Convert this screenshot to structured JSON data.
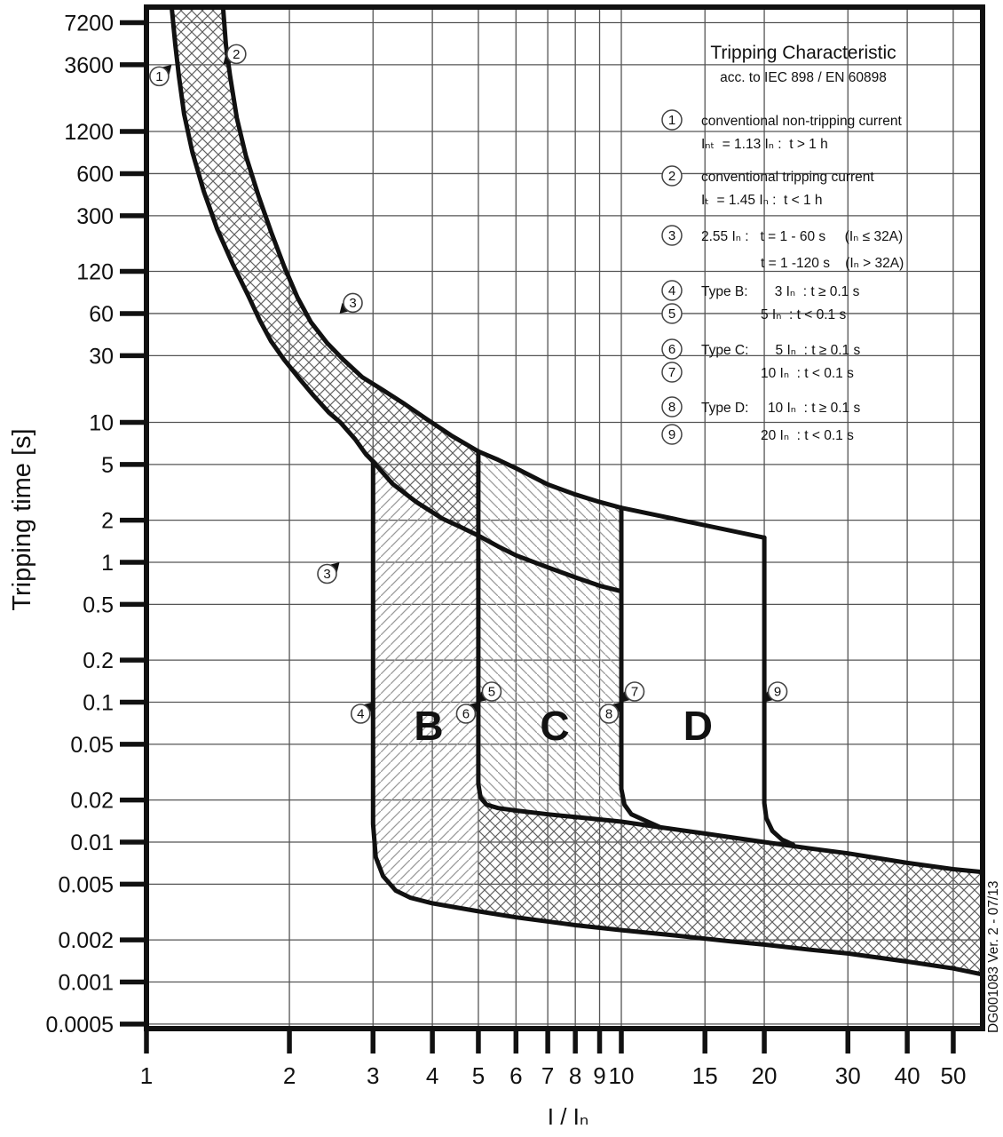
{
  "page": {
    "background": "#ffffff"
  },
  "header": {
    "title": "Tripping Characteristic",
    "subtitle": "acc. to IEC 898 / EN 60898"
  },
  "legend": {
    "items": [
      {
        "num": "1",
        "lines": [
          "conventional non-tripping current",
          "Iₙₜ  = 1.13 Iₙ :  t > 1 h"
        ]
      },
      {
        "num": "2",
        "lines": [
          "conventional tripping current",
          "Iₜ  = 1.45 Iₙ :  t < 1 h"
        ]
      },
      {
        "num": "3",
        "lines": [
          "2.55 Iₙ :   t = 1 - 60 s     (Iₙ ≤ 32A)",
          "t = 1 -120 s    (Iₙ > 32A)"
        ]
      },
      {
        "num": "4",
        "lines": [
          "Type B:       3 Iₙ  : t ≥ 0.1 s"
        ]
      },
      {
        "num": "5",
        "lines": [
          "5 Iₙ  : t < 0.1 s"
        ]
      },
      {
        "num": "6",
        "lines": [
          "Type C:       5 Iₙ  : t ≥ 0.1 s"
        ]
      },
      {
        "num": "7",
        "lines": [
          "10 Iₙ  : t < 0.1 s"
        ]
      },
      {
        "num": "8",
        "lines": [
          "Type D:     10 Iₙ  : t ≥ 0.1 s"
        ]
      },
      {
        "num": "9",
        "lines": [
          "20 Iₙ  : t < 0.1 s"
        ]
      }
    ]
  },
  "footnote": "DG001083 Ver. 2 - 07/13",
  "colors": {
    "ink": "#111111",
    "grid": "#555555",
    "hatch_single": "#9a9a9a",
    "hatch_cross": "#606060",
    "marker_stroke": "#444444",
    "background": "#ffffff"
  },
  "chart_data": {
    "type": "line",
    "log_log": true,
    "title": "Tripping Characteristic",
    "subtitle": "acc. to IEC 898 / EN 60898",
    "xlabel": "I / Iₙ",
    "ylabel": "Tripping time [s]",
    "x_ticks": [
      "1",
      "2",
      "3",
      "4",
      "5",
      "6",
      "7",
      "8",
      "9",
      "10",
      "15",
      "20",
      "30",
      "40",
      "50"
    ],
    "y_ticks": [
      "7200",
      "3600",
      "1200",
      "600",
      "300",
      "120",
      "60",
      "30",
      "10",
      "5",
      "2",
      "1",
      "0.5",
      "0.2",
      "0.1",
      "0.05",
      "0.02",
      "0.01",
      "0.005",
      "0.002",
      "0.001",
      "0.0005"
    ],
    "x_range": [
      1,
      57.7
    ],
    "y_range": [
      0.00046,
      9300
    ],
    "grid": true,
    "legend_position": "top-right",
    "series": [
      {
        "name": "thermal-upper-limit-1.45In",
        "points": [
          [
            1.45,
            9300
          ],
          [
            1.47,
            5000
          ],
          [
            1.5,
            3000
          ],
          [
            1.55,
            1500
          ],
          [
            1.62,
            800
          ],
          [
            1.72,
            420
          ],
          [
            1.83,
            230
          ],
          [
            1.95,
            130
          ],
          [
            2.08,
            78
          ],
          [
            2.22,
            52
          ],
          [
            2.4,
            37
          ],
          [
            2.6,
            28
          ],
          [
            2.85,
            21
          ],
          [
            3.15,
            17
          ],
          [
            3.5,
            13.5
          ],
          [
            3.9,
            10.5
          ],
          [
            4.4,
            8.0
          ],
          [
            5.0,
            6.2
          ],
          [
            5.5,
            5.4
          ],
          [
            6,
            4.7
          ],
          [
            7,
            3.6
          ],
          [
            8,
            3.05
          ],
          [
            9,
            2.7
          ],
          [
            10,
            2.45
          ]
        ]
      },
      {
        "name": "thermal-lower-limit-1.13In",
        "points": [
          [
            1.13,
            9300
          ],
          [
            1.15,
            5000
          ],
          [
            1.17,
            3000
          ],
          [
            1.2,
            1600
          ],
          [
            1.25,
            850
          ],
          [
            1.32,
            450
          ],
          [
            1.41,
            240
          ],
          [
            1.52,
            135
          ],
          [
            1.64,
            80
          ],
          [
            1.73,
            54
          ],
          [
            1.83,
            38
          ],
          [
            1.95,
            28
          ],
          [
            2.1,
            20.5
          ],
          [
            2.25,
            15.5
          ],
          [
            2.42,
            11.8
          ],
          [
            2.56,
            10.0
          ],
          [
            2.75,
            7.6
          ],
          [
            2.9,
            5.9
          ],
          [
            3.0,
            5.25
          ],
          [
            3.3,
            3.63
          ],
          [
            3.7,
            2.7
          ],
          [
            4.2,
            2.05
          ],
          [
            4.6,
            1.78
          ],
          [
            5.0,
            1.55
          ],
          [
            5.5,
            1.3
          ],
          [
            6,
            1.12
          ],
          [
            7,
            0.92
          ],
          [
            8,
            0.78
          ],
          [
            9,
            0.68
          ],
          [
            10,
            0.62
          ]
        ]
      },
      {
        "name": "type-d-upper-boundary",
        "points": [
          [
            10,
            2.45
          ],
          [
            20,
            1.5
          ]
        ]
      },
      {
        "name": "magnetic-b-min-3In",
        "points": [
          [
            3,
            5.25
          ],
          [
            3,
            0.0135
          ],
          [
            3.04,
            0.0078
          ],
          [
            3.15,
            0.0057
          ],
          [
            3.35,
            0.0045
          ],
          [
            3.6,
            0.004
          ],
          [
            4,
            0.00365
          ],
          [
            5,
            0.0032
          ],
          [
            6,
            0.0029
          ],
          [
            8,
            0.00255
          ],
          [
            10,
            0.00235
          ],
          [
            13,
            0.00215
          ],
          [
            17,
            0.00195
          ],
          [
            20,
            0.00185
          ],
          [
            25,
            0.0017
          ],
          [
            30,
            0.0016
          ],
          [
            40,
            0.0014
          ],
          [
            50,
            0.00125
          ],
          [
            57.7,
            0.00113
          ]
        ]
      },
      {
        "name": "magnetic-b-max-c-min-5In",
        "points": [
          [
            5,
            6.2
          ],
          [
            5,
            0.026
          ],
          [
            5.05,
            0.021
          ],
          [
            5.2,
            0.0185
          ],
          [
            5.5,
            0.0175
          ],
          [
            6,
            0.0168
          ],
          [
            7,
            0.0158
          ],
          [
            8,
            0.0151
          ],
          [
            10,
            0.014
          ],
          [
            12,
            0.0128
          ],
          [
            15,
            0.0115
          ],
          [
            20,
            0.01
          ],
          [
            25,
            0.009
          ],
          [
            30,
            0.0083
          ],
          [
            40,
            0.0071
          ],
          [
            50,
            0.0064
          ],
          [
            57.7,
            0.0061
          ]
        ]
      },
      {
        "name": "magnetic-c-max-d-min-10In",
        "points": [
          [
            10,
            2.45
          ],
          [
            10,
            0.024
          ],
          [
            10.15,
            0.0185
          ],
          [
            10.5,
            0.0158
          ],
          [
            11.2,
            0.0143
          ],
          [
            12,
            0.0129
          ]
        ]
      },
      {
        "name": "magnetic-d-max-20In",
        "points": [
          [
            20,
            1.5
          ],
          [
            20,
            0.019
          ],
          [
            20.2,
            0.0148
          ],
          [
            20.8,
            0.012
          ],
          [
            21.8,
            0.0104
          ],
          [
            23,
            0.0096
          ]
        ]
      }
    ],
    "regions": [
      {
        "name": "thermal-band",
        "hatch": "cross",
        "points": [
          [
            1.45,
            9300
          ],
          [
            1.47,
            5000
          ],
          [
            1.5,
            3000
          ],
          [
            1.55,
            1500
          ],
          [
            1.62,
            800
          ],
          [
            1.72,
            420
          ],
          [
            1.83,
            230
          ],
          [
            1.95,
            130
          ],
          [
            2.08,
            78
          ],
          [
            2.22,
            52
          ],
          [
            2.4,
            37
          ],
          [
            2.6,
            28
          ],
          [
            2.85,
            21
          ],
          [
            3.15,
            17
          ],
          [
            3.5,
            13.5
          ],
          [
            3.9,
            10.5
          ],
          [
            4.4,
            8.0
          ],
          [
            5.0,
            6.2
          ],
          [
            5.0,
            1.55
          ],
          [
            4.6,
            1.78
          ],
          [
            4.2,
            2.05
          ],
          [
            3.7,
            2.7
          ],
          [
            3.3,
            3.63
          ],
          [
            3.0,
            5.25
          ],
          [
            2.9,
            5.9
          ],
          [
            2.75,
            7.6
          ],
          [
            2.56,
            10.0
          ],
          [
            2.42,
            11.8
          ],
          [
            2.25,
            15.5
          ],
          [
            2.1,
            20.5
          ],
          [
            1.95,
            28
          ],
          [
            1.83,
            38
          ],
          [
            1.73,
            54
          ],
          [
            1.64,
            80
          ],
          [
            1.52,
            135
          ],
          [
            1.41,
            240
          ],
          [
            1.32,
            450
          ],
          [
            1.25,
            850
          ],
          [
            1.2,
            1600
          ],
          [
            1.17,
            3000
          ],
          [
            1.15,
            5000
          ],
          [
            1.13,
            9300
          ]
        ]
      },
      {
        "name": "type-b-region",
        "hatch": "fwd",
        "points": [
          [
            3.0,
            5.25
          ],
          [
            3.3,
            3.63
          ],
          [
            3.7,
            2.7
          ],
          [
            4.2,
            2.05
          ],
          [
            4.6,
            1.78
          ],
          [
            5.0,
            1.55
          ],
          [
            5.0,
            0.0032
          ],
          [
            4.0,
            0.00365
          ],
          [
            3.6,
            0.004
          ],
          [
            3.35,
            0.0045
          ],
          [
            3.15,
            0.0057
          ],
          [
            3.04,
            0.0078
          ],
          [
            3.0,
            0.0135
          ]
        ]
      },
      {
        "name": "type-c-region",
        "hatch": "bwd",
        "points": [
          [
            5.0,
            6.2
          ],
          [
            5.5,
            5.4
          ],
          [
            6,
            4.7
          ],
          [
            7,
            3.6
          ],
          [
            8,
            3.05
          ],
          [
            9,
            2.7
          ],
          [
            10,
            2.45
          ],
          [
            10,
            0.014
          ],
          [
            8,
            0.0151
          ],
          [
            7,
            0.0158
          ],
          [
            6,
            0.0168
          ],
          [
            5.5,
            0.0175
          ],
          [
            5.2,
            0.0185
          ],
          [
            5.05,
            0.021
          ],
          [
            5.0,
            0.026
          ]
        ]
      },
      {
        "name": "magnetic-band",
        "hatch": "cross",
        "points": [
          [
            5.0,
            0.026
          ],
          [
            5.05,
            0.021
          ],
          [
            5.2,
            0.0185
          ],
          [
            5.5,
            0.0175
          ],
          [
            6,
            0.0168
          ],
          [
            7,
            0.0158
          ],
          [
            8,
            0.0151
          ],
          [
            10,
            0.014
          ],
          [
            12,
            0.0128
          ],
          [
            15,
            0.0115
          ],
          [
            20,
            0.01
          ],
          [
            25,
            0.009
          ],
          [
            30,
            0.0083
          ],
          [
            40,
            0.0071
          ],
          [
            50,
            0.0064
          ],
          [
            57.7,
            0.0061
          ],
          [
            57.7,
            0.00113
          ],
          [
            50,
            0.00125
          ],
          [
            40,
            0.0014
          ],
          [
            30,
            0.0016
          ],
          [
            25,
            0.0017
          ],
          [
            20,
            0.00185
          ],
          [
            17,
            0.00195
          ],
          [
            13,
            0.00215
          ],
          [
            10,
            0.00235
          ],
          [
            8,
            0.00255
          ],
          [
            6,
            0.0029
          ],
          [
            5.0,
            0.0032
          ]
        ]
      }
    ],
    "region_labels": [
      {
        "label": "B",
        "x": 3.93,
        "t": 0.068
      },
      {
        "label": "C",
        "x": 7.24,
        "t": 0.068
      },
      {
        "label": "D",
        "x": 14.5,
        "t": 0.068
      }
    ],
    "markers": [
      {
        "num": "1",
        "x": 1.13,
        "t": 3600,
        "side": "below-left"
      },
      {
        "num": "2",
        "x": 1.45,
        "t": 3600,
        "side": "above-right"
      },
      {
        "num": "3",
        "x": 2.55,
        "t": 60,
        "side": "above-right"
      },
      {
        "num": "3",
        "x": 2.55,
        "t": 1,
        "side": "below-left"
      },
      {
        "num": "4",
        "x": 3,
        "t": 0.1,
        "side": "below-left"
      },
      {
        "num": "5",
        "x": 5,
        "t": 0.1,
        "side": "above-right"
      },
      {
        "num": "6",
        "x": 5,
        "t": 0.1,
        "side": "below-left"
      },
      {
        "num": "7",
        "x": 10,
        "t": 0.1,
        "side": "above-right"
      },
      {
        "num": "8",
        "x": 10,
        "t": 0.1,
        "side": "below-left"
      },
      {
        "num": "9",
        "x": 20,
        "t": 0.1,
        "side": "above-right"
      }
    ]
  }
}
